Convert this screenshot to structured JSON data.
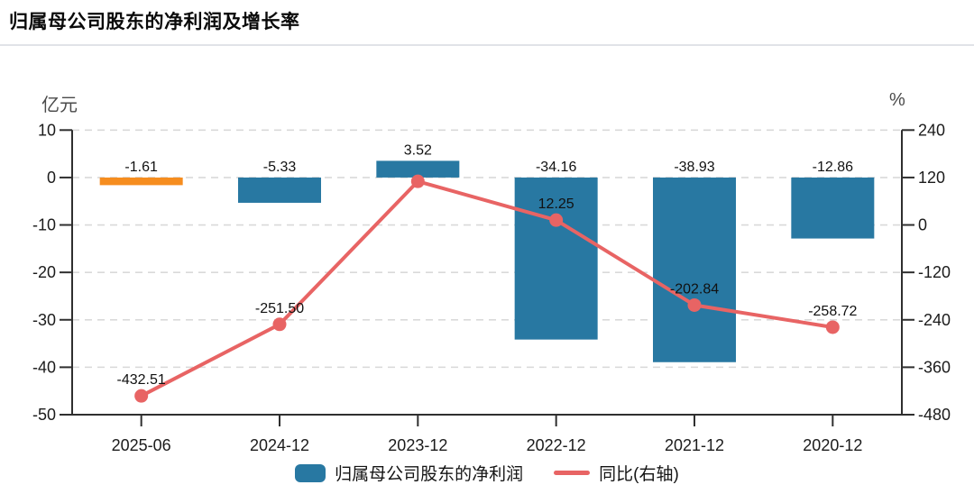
{
  "page": {
    "title": "归属母公司股东的净利润及增长率"
  },
  "axes": {
    "left_unit": "亿元",
    "right_unit": "%"
  },
  "legend": {
    "items": [
      {
        "label": "归属母公司股东的净利润",
        "marker": "bar-swatch",
        "color": "#2878A2"
      },
      {
        "label": "同比(右轴)",
        "marker": "line-swatch",
        "color": "#E86464"
      }
    ]
  },
  "chart_data": {
    "type": "bar",
    "subtype": "combo-bar-line",
    "title": "归属母公司股东的净利润及增长率",
    "categories": [
      "2025-06",
      "2024-12",
      "2023-12",
      "2022-12",
      "2021-12",
      "2020-12"
    ],
    "series": [
      {
        "name": "归属母公司股东的净利润",
        "type": "bar",
        "axis": "left",
        "unit": "亿元",
        "values": [
          -1.61,
          -5.33,
          3.52,
          -34.16,
          -38.93,
          -12.86
        ],
        "labels": [
          "-1.61",
          "-5.33",
          "3.52",
          "-34.16",
          "-38.93",
          "-12.86"
        ],
        "colors": [
          "#F68D1F",
          "#2878A2",
          "#2878A2",
          "#2878A2",
          "#2878A2",
          "#2878A2"
        ]
      },
      {
        "name": "同比(右轴)",
        "type": "line",
        "axis": "right",
        "unit": "%",
        "values": [
          -432.51,
          -251.5,
          110.3,
          12.25,
          -202.84,
          -258.72
        ],
        "labels": [
          "-432.51",
          "-251.50",
          "",
          "12.25",
          "-202.84",
          "-258.72"
        ],
        "color": "#E86464"
      }
    ],
    "left_axis": {
      "unit": "亿元",
      "min": -50,
      "max": 10,
      "ticks": [
        10,
        0,
        -10,
        -20,
        -30,
        -40,
        -50
      ]
    },
    "right_axis": {
      "unit": "%",
      "min": -480,
      "max": 240,
      "ticks": [
        240,
        120,
        0,
        -120,
        -240,
        -360,
        -480
      ]
    },
    "grid": {
      "horizontal_dashed": true
    },
    "legend_position": "bottom"
  },
  "colors": {
    "bar": "#2878A2",
    "bar_highlight": "#F68D1F",
    "line": "#E86464",
    "grid": "#D9D9D9",
    "axis": "#2F2F2F",
    "tick_text": "#1b1b1b",
    "value_text": "#111111",
    "divider": "#E1E3E8"
  }
}
